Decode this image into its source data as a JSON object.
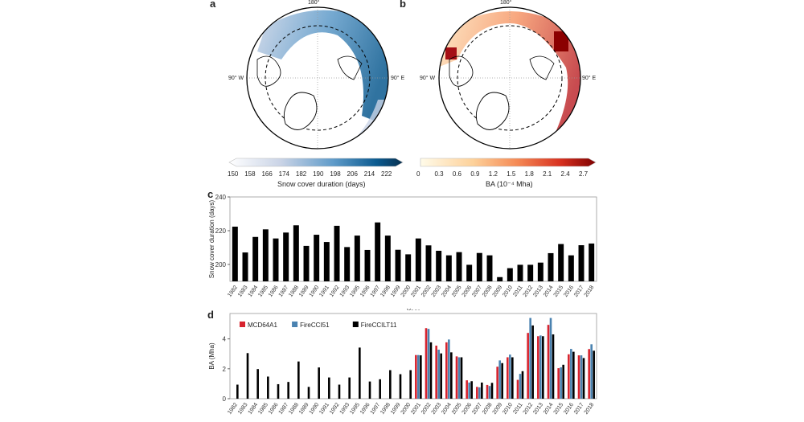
{
  "panels": {
    "a": {
      "label": "a",
      "north": "180°",
      "west": "90° W",
      "east": "90° E",
      "colorbar": {
        "title": "Snow cover duration (days)",
        "ticks": [
          "150",
          "158",
          "166",
          "174",
          "182",
          "190",
          "198",
          "206",
          "214",
          "222"
        ],
        "colors": [
          "#ffffff",
          "#c9d3e6",
          "#5f9bc9",
          "#0b5a8f",
          "#08304f"
        ]
      }
    },
    "b": {
      "label": "b",
      "north": "180°",
      "west": "90° W",
      "east": "90° E",
      "colorbar": {
        "title": "BA (10⁻⁴ Mha)",
        "ticks": [
          "0",
          "0.3",
          "0.6",
          "0.9",
          "1.2",
          "1.5",
          "1.8",
          "2.1",
          "2.4",
          "2.7"
        ],
        "colors": [
          "#fffbe9",
          "#fdd19a",
          "#f58a55",
          "#d7301f",
          "#7f0000"
        ]
      }
    },
    "c": {
      "label": "c"
    },
    "d": {
      "label": "d"
    }
  },
  "chart_data": [
    {
      "type": "bar",
      "panel": "c",
      "xlabel": "Year",
      "ylabel": "Snow cover duration (days)",
      "ylim": [
        190,
        240
      ],
      "yticks": [
        200,
        220,
        240
      ],
      "categories": [
        "1982",
        "1983",
        "1984",
        "1985",
        "1986",
        "1987",
        "1988",
        "1989",
        "1990",
        "1991",
        "1992",
        "1993",
        "1995",
        "1996",
        "1997",
        "1998",
        "1999",
        "2000",
        "2001",
        "2002",
        "2003",
        "2004",
        "2005",
        "2006",
        "2007",
        "2008",
        "2009",
        "2010",
        "2011",
        "2012",
        "2013",
        "2014",
        "2015",
        "2016",
        "2017",
        "2018"
      ],
      "values": [
        222.4,
        207.1,
        216.3,
        220.8,
        215.4,
        218.9,
        223.2,
        211.0,
        217.6,
        213.3,
        222.9,
        210.3,
        217.1,
        208.6,
        224.9,
        217.1,
        208.7,
        206.0,
        215.4,
        211.3,
        208.1,
        205.4,
        207.3,
        199.8,
        206.8,
        205.4,
        192.5,
        197.8,
        199.8,
        199.8,
        201.1,
        206.7,
        212.1,
        205.4,
        211.4,
        212.4
      ],
      "color": "#000000"
    },
    {
      "type": "bar",
      "panel": "d",
      "xlabel": "Year",
      "ylabel": "BA (Mha)",
      "ylim": [
        0,
        5.7
      ],
      "yticks": [
        0,
        2,
        4
      ],
      "legend": "top-left",
      "categories": [
        "1982",
        "1983",
        "1984",
        "1985",
        "1986",
        "1987",
        "1988",
        "1989",
        "1990",
        "1991",
        "1992",
        "1993",
        "1995",
        "1996",
        "1997",
        "1998",
        "1999",
        "2000",
        "2001",
        "2002",
        "2003",
        "2004",
        "2005",
        "2006",
        "2007",
        "2008",
        "2009",
        "2010",
        "2011",
        "2012",
        "2013",
        "2014",
        "2015",
        "2016",
        "2017",
        "2018"
      ],
      "series": [
        {
          "name": "MCD64A1",
          "color": "#d7232e",
          "values": [
            null,
            null,
            null,
            null,
            null,
            null,
            null,
            null,
            null,
            null,
            null,
            null,
            null,
            null,
            null,
            null,
            null,
            null,
            2.92,
            4.72,
            3.55,
            3.77,
            2.83,
            1.23,
            0.79,
            0.92,
            2.14,
            2.77,
            1.26,
            4.4,
            4.18,
            4.94,
            2.04,
            2.97,
            2.9,
            3.32
          ]
        },
        {
          "name": "FireCCI51",
          "color": "#4a82b0",
          "values": [
            null,
            null,
            null,
            null,
            null,
            null,
            null,
            null,
            null,
            null,
            null,
            null,
            null,
            null,
            null,
            null,
            null,
            null,
            2.92,
            4.67,
            3.28,
            3.96,
            2.77,
            1.08,
            0.76,
            0.85,
            2.56,
            2.95,
            1.66,
            5.4,
            4.23,
            5.4,
            2.1,
            3.33,
            2.9,
            3.64
          ]
        },
        {
          "name": "FireCCILT11",
          "color": "#000000",
          "values": [
            0.94,
            3.05,
            1.98,
            1.48,
            0.97,
            1.12,
            2.49,
            0.79,
            2.09,
            1.42,
            0.94,
            1.42,
            3.42,
            1.15,
            1.3,
            1.91,
            1.64,
            1.91,
            2.9,
            3.77,
            3.03,
            3.1,
            2.77,
            1.17,
            1.08,
            1.06,
            2.38,
            2.77,
            1.84,
            4.9,
            4.18,
            4.3,
            2.27,
            3.14,
            2.72,
            3.21
          ]
        }
      ]
    }
  ]
}
